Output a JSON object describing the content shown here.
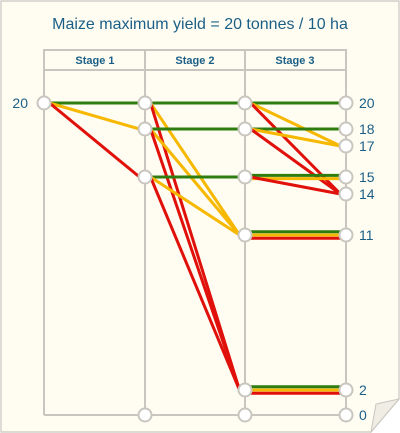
{
  "title": "Maize maximum yield = 20 tonnes / 10 ha",
  "stages": [
    "Stage 1",
    "Stage 2",
    "Stage 3"
  ],
  "start_label": "20",
  "outcome_labels": [
    "20",
    "18",
    "17",
    "15",
    "14",
    "11",
    "2",
    "0"
  ],
  "colors": {
    "text": "#1b5f86",
    "frame": "#c8c6bf",
    "paper": "#fffdf2",
    "node_fill": "#ffffff",
    "green": "#2e7d0e",
    "amber": "#f6b800",
    "red": "#e0100a"
  },
  "levels": [
    20,
    18,
    17,
    15,
    14,
    11,
    2,
    0
  ],
  "start": {
    "stage": 0,
    "level": 20
  },
  "stage_nodes": [
    {
      "stage": 1,
      "level": 20
    },
    {
      "stage": 1,
      "level": 18
    },
    {
      "stage": 1,
      "level": 15
    },
    {
      "stage": 1,
      "level": 0
    },
    {
      "stage": 2,
      "level": 20
    },
    {
      "stage": 2,
      "level": 18
    },
    {
      "stage": 2,
      "level": 15
    },
    {
      "stage": 2,
      "level": 11
    },
    {
      "stage": 2,
      "level": 2
    },
    {
      "stage": 2,
      "level": 0
    }
  ],
  "end_nodes": [
    20,
    18,
    17,
    15,
    14,
    11,
    2,
    0
  ],
  "transitions": [
    {
      "from": [
        0,
        20
      ],
      "to": [
        1,
        20
      ],
      "color": "green"
    },
    {
      "from": [
        0,
        20
      ],
      "to": [
        1,
        18
      ],
      "color": "amber"
    },
    {
      "from": [
        0,
        20
      ],
      "to": [
        1,
        15
      ],
      "color": "red"
    },
    {
      "from": [
        1,
        20
      ],
      "to": [
        2,
        20
      ],
      "color": "green"
    },
    {
      "from": [
        1,
        20
      ],
      "to": [
        2,
        11
      ],
      "color": "amber"
    },
    {
      "from": [
        1,
        20
      ],
      "to": [
        2,
        2
      ],
      "color": "red"
    },
    {
      "from": [
        1,
        18
      ],
      "to": [
        2,
        18
      ],
      "color": "green"
    },
    {
      "from": [
        1,
        18
      ],
      "to": [
        2,
        11
      ],
      "color": "amber"
    },
    {
      "from": [
        1,
        18
      ],
      "to": [
        2,
        2
      ],
      "color": "red"
    },
    {
      "from": [
        1,
        15
      ],
      "to": [
        2,
        15
      ],
      "color": "green"
    },
    {
      "from": [
        1,
        15
      ],
      "to": [
        2,
        11
      ],
      "color": "amber"
    },
    {
      "from": [
        1,
        15
      ],
      "to": [
        2,
        2
      ],
      "color": "red"
    },
    {
      "from": [
        2,
        20
      ],
      "to": [
        3,
        20
      ],
      "color": "green"
    },
    {
      "from": [
        2,
        20
      ],
      "to": [
        3,
        17
      ],
      "color": "amber"
    },
    {
      "from": [
        2,
        20
      ],
      "to": [
        3,
        14
      ],
      "color": "red"
    },
    {
      "from": [
        2,
        18
      ],
      "to": [
        3,
        18
      ],
      "color": "green"
    },
    {
      "from": [
        2,
        18
      ],
      "to": [
        3,
        17
      ],
      "color": "amber"
    },
    {
      "from": [
        2,
        18
      ],
      "to": [
        3,
        14
      ],
      "color": "red"
    },
    {
      "from": [
        2,
        15
      ],
      "to": [
        3,
        15
      ],
      "color": "green"
    },
    {
      "from": [
        2,
        15
      ],
      "to": [
        3,
        15
      ],
      "color": "amber"
    },
    {
      "from": [
        2,
        15
      ],
      "to": [
        3,
        14
      ],
      "color": "red"
    },
    {
      "from": [
        2,
        11
      ],
      "to": [
        3,
        11
      ],
      "color": "green"
    },
    {
      "from": [
        2,
        11
      ],
      "to": [
        3,
        11
      ],
      "color": "amber"
    },
    {
      "from": [
        2,
        11
      ],
      "to": [
        3,
        11
      ],
      "color": "red"
    },
    {
      "from": [
        2,
        2
      ],
      "to": [
        3,
        2
      ],
      "color": "green"
    },
    {
      "from": [
        2,
        2
      ],
      "to": [
        3,
        2
      ],
      "color": "amber"
    },
    {
      "from": [
        2,
        2
      ],
      "to": [
        3,
        2
      ],
      "color": "red"
    }
  ]
}
